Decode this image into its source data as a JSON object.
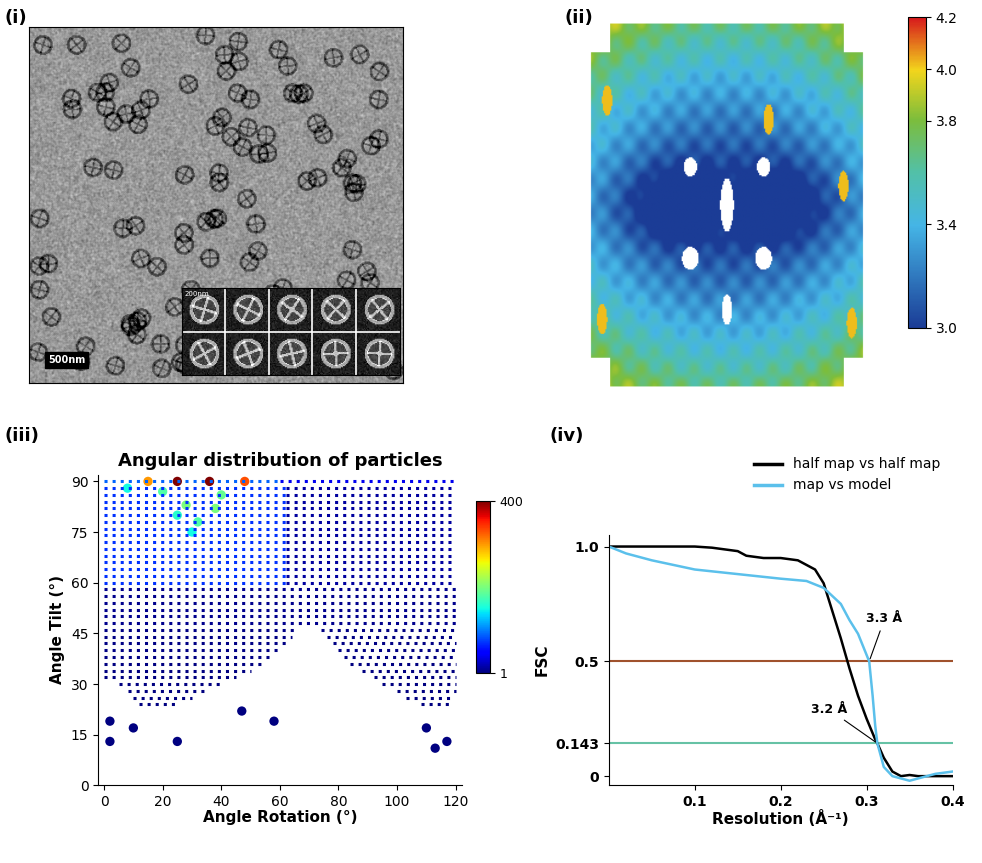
{
  "panel_labels": [
    "(i)",
    "(ii)",
    "(iii)",
    "(iv)"
  ],
  "micrograph": {
    "scale_bar": "500nm",
    "class_averages": {
      "count": 10,
      "scale_bar": "200nm"
    }
  },
  "local_resolution_map": {
    "colorbar": {
      "range": [
        3.0,
        4.2
      ],
      "ticks": [
        {
          "value": 3,
          "label": "3.0"
        },
        3.4,
        3.8,
        {
          "value": 4,
          "label": "4.0"
        },
        4.2
      ]
    }
  },
  "chart_data": [
    {
      "type": "scatter",
      "title": "Angular distribution of particles",
      "x_label": "Angle Rotation (°)",
      "y_label": "Angle Tilt (°)",
      "xlim": [
        -2,
        122
      ],
      "ylim": [
        0,
        92
      ],
      "xticks": [
        0,
        20,
        40,
        60,
        80,
        100,
        120
      ],
      "yticks": [
        0,
        15,
        30,
        45,
        60,
        75,
        90
      ],
      "rows": [
        {
          "tilt": 90,
          "start": 0,
          "end": 60,
          "count": 90
        },
        {
          "tilt": 90,
          "start": 60,
          "end": 120,
          "count": 40
        },
        {
          "tilt": 88,
          "start": 0,
          "end": 62,
          "count": 70
        },
        {
          "tilt": 88,
          "start": 62,
          "end": 120,
          "count": 12
        },
        {
          "tilt": 86,
          "start": 0,
          "end": 62,
          "count": 70
        },
        {
          "tilt": 86,
          "start": 62,
          "end": 120,
          "count": 12
        },
        {
          "tilt": 84,
          "start": 0,
          "end": 62,
          "count": 70
        },
        {
          "tilt": 84,
          "start": 62,
          "end": 120,
          "count": 12
        },
        {
          "tilt": 82,
          "start": 0,
          "end": 62,
          "count": 70
        },
        {
          "tilt": 82,
          "start": 62,
          "end": 120,
          "count": 12
        },
        {
          "tilt": 80,
          "start": 0,
          "end": 62,
          "count": 70
        },
        {
          "tilt": 80,
          "start": 62,
          "end": 120,
          "count": 12
        },
        {
          "tilt": 78,
          "start": 0,
          "end": 62,
          "count": 70
        },
        {
          "tilt": 78,
          "start": 62,
          "end": 120,
          "count": 12
        },
        {
          "tilt": 76,
          "start": 0,
          "end": 62,
          "count": 70
        },
        {
          "tilt": 76,
          "start": 62,
          "end": 120,
          "count": 12
        },
        {
          "tilt": 74,
          "start": 0,
          "end": 62,
          "count": 70
        },
        {
          "tilt": 74,
          "start": 62,
          "end": 120,
          "count": 12
        },
        {
          "tilt": 72,
          "start": 0,
          "end": 62,
          "count": 70
        },
        {
          "tilt": 72,
          "start": 62,
          "end": 120,
          "count": 12
        },
        {
          "tilt": 70,
          "start": 0,
          "end": 62,
          "count": 70
        },
        {
          "tilt": 70,
          "start": 62,
          "end": 120,
          "count": 12
        },
        {
          "tilt": 68,
          "start": 0,
          "end": 62,
          "count": 70
        },
        {
          "tilt": 68,
          "start": 62,
          "end": 120,
          "count": 12
        },
        {
          "tilt": 66,
          "start": 0,
          "end": 62,
          "count": 70
        },
        {
          "tilt": 66,
          "start": 62,
          "end": 120,
          "count": 12
        },
        {
          "tilt": 64,
          "start": 0,
          "end": 62,
          "count": 70
        },
        {
          "tilt": 64,
          "start": 62,
          "end": 120,
          "count": 12
        },
        {
          "tilt": 62,
          "start": 0,
          "end": 62,
          "count": 70
        },
        {
          "tilt": 62,
          "start": 62,
          "end": 120,
          "count": 12
        },
        {
          "tilt": 60,
          "start": 0,
          "end": 62,
          "count": 70
        },
        {
          "tilt": 60,
          "start": 62,
          "end": 120,
          "count": 12
        },
        {
          "tilt": 58,
          "start": 0,
          "end": 120,
          "count": 6
        },
        {
          "tilt": 56,
          "start": 0,
          "end": 120,
          "count": 6
        },
        {
          "tilt": 54,
          "start": 0,
          "end": 120,
          "count": 6
        },
        {
          "tilt": 52,
          "start": 0,
          "end": 120,
          "count": 6
        },
        {
          "tilt": 50,
          "start": 0,
          "end": 120,
          "count": 6
        },
        {
          "tilt": 48,
          "start": 0,
          "end": 120,
          "count": 6
        },
        {
          "tilt": 46,
          "start": 0,
          "end": 66,
          "count": 3
        },
        {
          "tilt": 46,
          "start": 74,
          "end": 120,
          "count": 3
        },
        {
          "tilt": 44,
          "start": 0,
          "end": 64,
          "count": 3
        },
        {
          "tilt": 44,
          "start": 76,
          "end": 120,
          "count": 3
        },
        {
          "tilt": 42,
          "start": 0,
          "end": 62,
          "count": 3
        },
        {
          "tilt": 42,
          "start": 78,
          "end": 120,
          "count": 3
        },
        {
          "tilt": 40,
          "start": 0,
          "end": 60,
          "count": 3
        },
        {
          "tilt": 40,
          "start": 80,
          "end": 120,
          "count": 3
        },
        {
          "tilt": 38,
          "start": 0,
          "end": 58,
          "count": 3
        },
        {
          "tilt": 38,
          "start": 82,
          "end": 120,
          "count": 3
        },
        {
          "tilt": 36,
          "start": 0,
          "end": 55,
          "count": 2
        },
        {
          "tilt": 36,
          "start": 84,
          "end": 120,
          "count": 2
        },
        {
          "tilt": 34,
          "start": 0,
          "end": 50,
          "count": 2
        },
        {
          "tilt": 34,
          "start": 88,
          "end": 120,
          "count": 2
        },
        {
          "tilt": 32,
          "start": 0,
          "end": 45,
          "count": 1
        },
        {
          "tilt": 32,
          "start": 92,
          "end": 120,
          "count": 1
        },
        {
          "tilt": 30,
          "start": 5,
          "end": 40,
          "count": 1
        },
        {
          "tilt": 30,
          "start": 95,
          "end": 120,
          "count": 1
        },
        {
          "tilt": 28,
          "start": 8,
          "end": 35,
          "count": 1
        },
        {
          "tilt": 28,
          "start": 100,
          "end": 120,
          "count": 1
        },
        {
          "tilt": 26,
          "start": 10,
          "end": 30,
          "count": 1
        },
        {
          "tilt": 26,
          "start": 103,
          "end": 118,
          "count": 1
        },
        {
          "tilt": 24,
          "start": 12,
          "end": 25,
          "count": 1
        },
        {
          "tilt": 24,
          "start": 108,
          "end": 118,
          "count": 1
        }
      ],
      "points": [
        {
          "rotation": 15,
          "tilt": 90,
          "count": 300
        },
        {
          "rotation": 25,
          "tilt": 90,
          "count": 400
        },
        {
          "rotation": 36,
          "tilt": 90,
          "count": 400
        },
        {
          "rotation": 48,
          "tilt": 90,
          "count": 330
        },
        {
          "rotation": 20,
          "tilt": 87,
          "count": 180
        },
        {
          "rotation": 40,
          "tilt": 86,
          "count": 190
        },
        {
          "rotation": 28,
          "tilt": 83,
          "count": 200
        },
        {
          "rotation": 38,
          "tilt": 82,
          "count": 200
        },
        {
          "rotation": 25,
          "tilt": 80,
          "count": 160
        },
        {
          "rotation": 32,
          "tilt": 78,
          "count": 180
        },
        {
          "rotation": 30,
          "tilt": 75,
          "count": 150
        },
        {
          "rotation": 8,
          "tilt": 88,
          "count": 150
        },
        {
          "rotation": 2,
          "tilt": 13,
          "count": 1
        },
        {
          "rotation": 2,
          "tilt": 19,
          "count": 1
        },
        {
          "rotation": 10,
          "tilt": 17,
          "count": 1
        },
        {
          "rotation": 25,
          "tilt": 13,
          "count": 1
        },
        {
          "rotation": 47,
          "tilt": 22,
          "count": 1
        },
        {
          "rotation": 58,
          "tilt": 19,
          "count": 1
        },
        {
          "rotation": 110,
          "tilt": 17,
          "count": 1
        },
        {
          "rotation": 113,
          "tilt": 11,
          "count": 1
        },
        {
          "rotation": 117,
          "tilt": 13,
          "count": 1
        }
      ],
      "colorbar": {
        "range": [
          1,
          400
        ],
        "ticks": [
          1,
          400
        ]
      }
    },
    {
      "type": "line",
      "x_label": "Resolution (Å⁻¹)",
      "y_label": "FSC",
      "xlim": [
        0,
        0.4
      ],
      "ylim": [
        -0.04,
        1.05
      ],
      "xticks": [
        0.1,
        0.2,
        0.3,
        0.4
      ],
      "yticks": [
        0,
        0.143,
        0.5,
        {
          "value": 1,
          "label": "1.0"
        }
      ],
      "legend": "upper right",
      "series": [
        {
          "name": "half map vs half map",
          "color": "#000000",
          "x": [
            0,
            0.05,
            0.1,
            0.12,
            0.15,
            0.16,
            0.18,
            0.2,
            0.22,
            0.24,
            0.25,
            0.26,
            0.27,
            0.28,
            0.29,
            0.3,
            0.31,
            0.3125,
            0.32,
            0.33,
            0.34,
            0.35,
            0.36,
            0.4
          ],
          "values": [
            1.0,
            1.0,
            1.0,
            0.995,
            0.98,
            0.96,
            0.95,
            0.95,
            0.94,
            0.9,
            0.84,
            0.72,
            0.6,
            0.47,
            0.35,
            0.25,
            0.16,
            0.143,
            0.08,
            0.02,
            0.0,
            0.005,
            0.0,
            0.0
          ]
        },
        {
          "name": "map vs model",
          "color": "#5bc0eb",
          "x": [
            0,
            0.02,
            0.05,
            0.1,
            0.15,
            0.2,
            0.23,
            0.25,
            0.27,
            0.28,
            0.29,
            0.303,
            0.307,
            0.31,
            0.3125,
            0.32,
            0.33,
            0.35,
            0.38,
            0.4
          ],
          "values": [
            1.0,
            0.97,
            0.94,
            0.9,
            0.88,
            0.86,
            0.85,
            0.82,
            0.75,
            0.68,
            0.62,
            0.5,
            0.35,
            0.22,
            0.143,
            0.04,
            0.0,
            -0.02,
            0.01,
            0.02
          ]
        }
      ],
      "reference_lines": [
        {
          "value": 0.5,
          "color": "#a0522d"
        },
        {
          "value": 0.143,
          "color": "#66c2a5"
        }
      ],
      "annotations": [
        {
          "text": "3.3 Å",
          "x": 0.303,
          "y": 0.5
        },
        {
          "text": "3.2 Å",
          "x": 0.3125,
          "y": 0.143
        }
      ]
    }
  ]
}
